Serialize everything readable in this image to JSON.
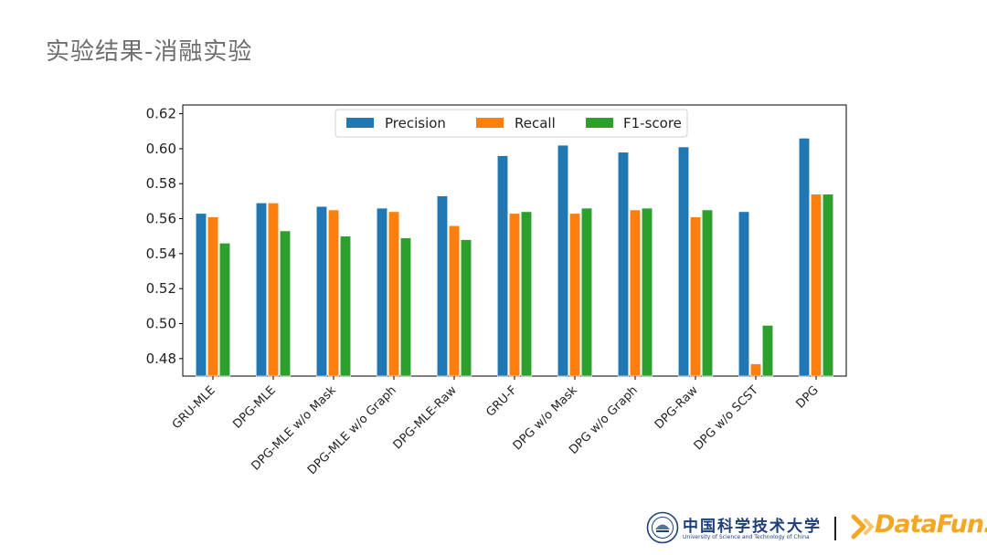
{
  "slide": {
    "title": "实验结果-消融实验"
  },
  "colors": {
    "precision": "#1f77b4",
    "recall": "#ff7f0e",
    "f1": "#2ca02c",
    "title_text": "#6e6e6e",
    "logo_orange": "#f5a623",
    "logo_blue": "#1d3f7a"
  },
  "footer": {
    "university_name": "中国科学技术大学",
    "university_subtitle": "University of Science and Technology of China",
    "partner_logo_text": "DataFun."
  },
  "chart_data": {
    "type": "bar",
    "title": "",
    "xlabel": "",
    "ylabel": "",
    "ylim": [
      0.47,
      0.625
    ],
    "yticks": [
      0.48,
      0.5,
      0.52,
      0.54,
      0.56,
      0.58,
      0.6,
      0.62
    ],
    "grid": false,
    "legend_position": "top-center",
    "categories": [
      "GRU-MLE",
      "DPG-MLE",
      "DPG-MLE w/o Mask",
      "DPG-MLE w/o Graph",
      "DPG-MLE-Raw",
      "GRU-F",
      "DPG w/o Mask",
      "DPG w/o Graph",
      "DPG-Raw",
      "DPG w/o SCST",
      "DPG"
    ],
    "series": [
      {
        "name": "Precision",
        "color": "#1f77b4",
        "values": [
          0.563,
          0.569,
          0.567,
          0.566,
          0.573,
          0.596,
          0.602,
          0.598,
          0.601,
          0.564,
          0.606
        ]
      },
      {
        "name": "Recall",
        "color": "#ff7f0e",
        "values": [
          0.561,
          0.569,
          0.565,
          0.564,
          0.556,
          0.563,
          0.563,
          0.565,
          0.561,
          0.477,
          0.574
        ]
      },
      {
        "name": "F1-score",
        "color": "#2ca02c",
        "values": [
          0.546,
          0.553,
          0.55,
          0.549,
          0.548,
          0.564,
          0.566,
          0.566,
          0.565,
          0.499,
          0.574
        ]
      }
    ]
  }
}
